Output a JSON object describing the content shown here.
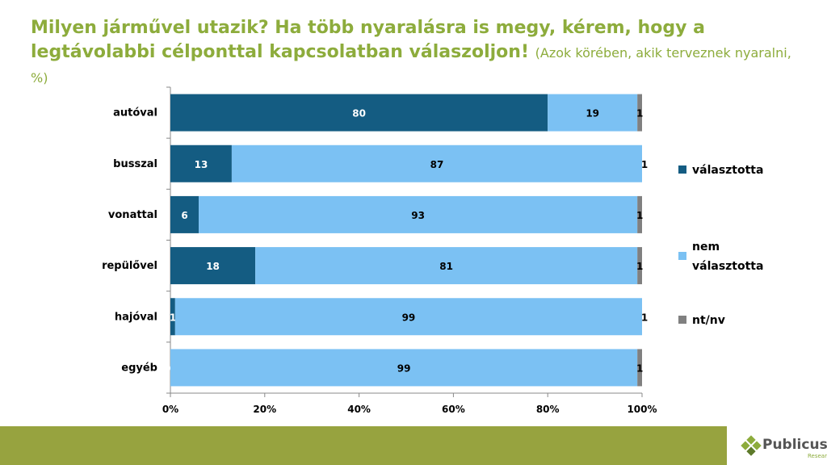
{
  "title": {
    "main": "Milyen járművel utazik? Ha több nyaralásra is megy, kérem, hogy a legtávolabbi célponttal kapcsolatban válaszoljon!",
    "sub": "(Azok körében, akik terveznek nyaralni, %)"
  },
  "chart_data": {
    "type": "bar",
    "orientation": "horizontal",
    "stacked": true,
    "categories": [
      "autóval",
      "busszal",
      "vonattal",
      "repülővel",
      "hajóval",
      "egyéb"
    ],
    "series": [
      {
        "name": "választotta",
        "color": "#145c82",
        "values": [
          80,
          13,
          6,
          18,
          1,
          0
        ]
      },
      {
        "name": "nem választotta",
        "color": "#7bc1f3",
        "values": [
          19,
          87,
          93,
          81,
          99,
          99
        ]
      },
      {
        "name": "nt/nv",
        "color": "#808080",
        "values": [
          1,
          1,
          1,
          1,
          1,
          1
        ]
      }
    ],
    "xlim": [
      0,
      100
    ],
    "xticks": [
      "0%",
      "20%",
      "40%",
      "60%",
      "80%",
      "100%"
    ],
    "legend_position": "right",
    "grid": false
  },
  "branding": {
    "logo_text": "Publicus",
    "logo_sub": "Research",
    "footer_color": "#97a33f"
  }
}
